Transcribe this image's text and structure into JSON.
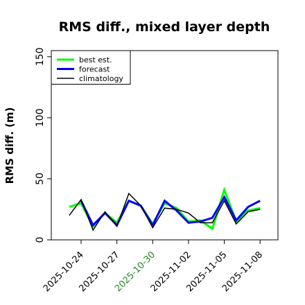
{
  "chart_data": {
    "type": "line",
    "title": "RMS diff., mixed layer depth",
    "ylabel": "RMS diff. (m)",
    "xlabel": "",
    "ylim": [
      0,
      155
    ],
    "xlim": [
      "2025-10-21T12",
      "2025-11-09T12"
    ],
    "yticks": [
      0,
      50,
      100,
      150
    ],
    "xticks": [
      {
        "label": "2025-10-24",
        "date": "2025-10-24",
        "color": "#000000"
      },
      {
        "label": "2025-10-27",
        "date": "2025-10-27",
        "color": "#000000"
      },
      {
        "label": "2025-10-30",
        "date": "2025-10-30",
        "color": "#228B22"
      },
      {
        "label": "2025-11-02",
        "date": "2025-11-02",
        "color": "#000000"
      },
      {
        "label": "2025-11-05",
        "date": "2025-11-05",
        "color": "#000000"
      },
      {
        "label": "2025-11-08",
        "date": "2025-11-08",
        "color": "#000000"
      }
    ],
    "legend_position": "top-left",
    "x": [
      "2025-10-23",
      "2025-10-24",
      "2025-10-25",
      "2025-10-26",
      "2025-10-27",
      "2025-10-28",
      "2025-10-29",
      "2025-10-30",
      "2025-10-31",
      "2025-11-01",
      "2025-11-02",
      "2025-11-03",
      "2025-11-04",
      "2025-11-05",
      "2025-11-06",
      "2025-11-07",
      "2025-11-08"
    ],
    "series": [
      {
        "name": "best est.",
        "color": "#00ff00",
        "width": 3,
        "values": [
          27,
          30,
          11,
          22,
          14,
          32,
          28,
          13,
          30,
          26,
          15,
          16,
          9,
          41,
          15,
          24,
          26
        ]
      },
      {
        "name": "forecast",
        "color": "#0000ff",
        "width": 3,
        "values": [
          null,
          32,
          12,
          22,
          12,
          32,
          28,
          12,
          32,
          24,
          14,
          15,
          18,
          35,
          16,
          27,
          32
        ]
      },
      {
        "name": "climatology",
        "color": "#000000",
        "width": 1.5,
        "values": [
          20,
          33,
          8,
          23,
          11,
          38,
          28,
          10,
          26,
          25,
          22,
          14,
          14,
          32,
          13,
          23,
          25
        ]
      }
    ]
  }
}
